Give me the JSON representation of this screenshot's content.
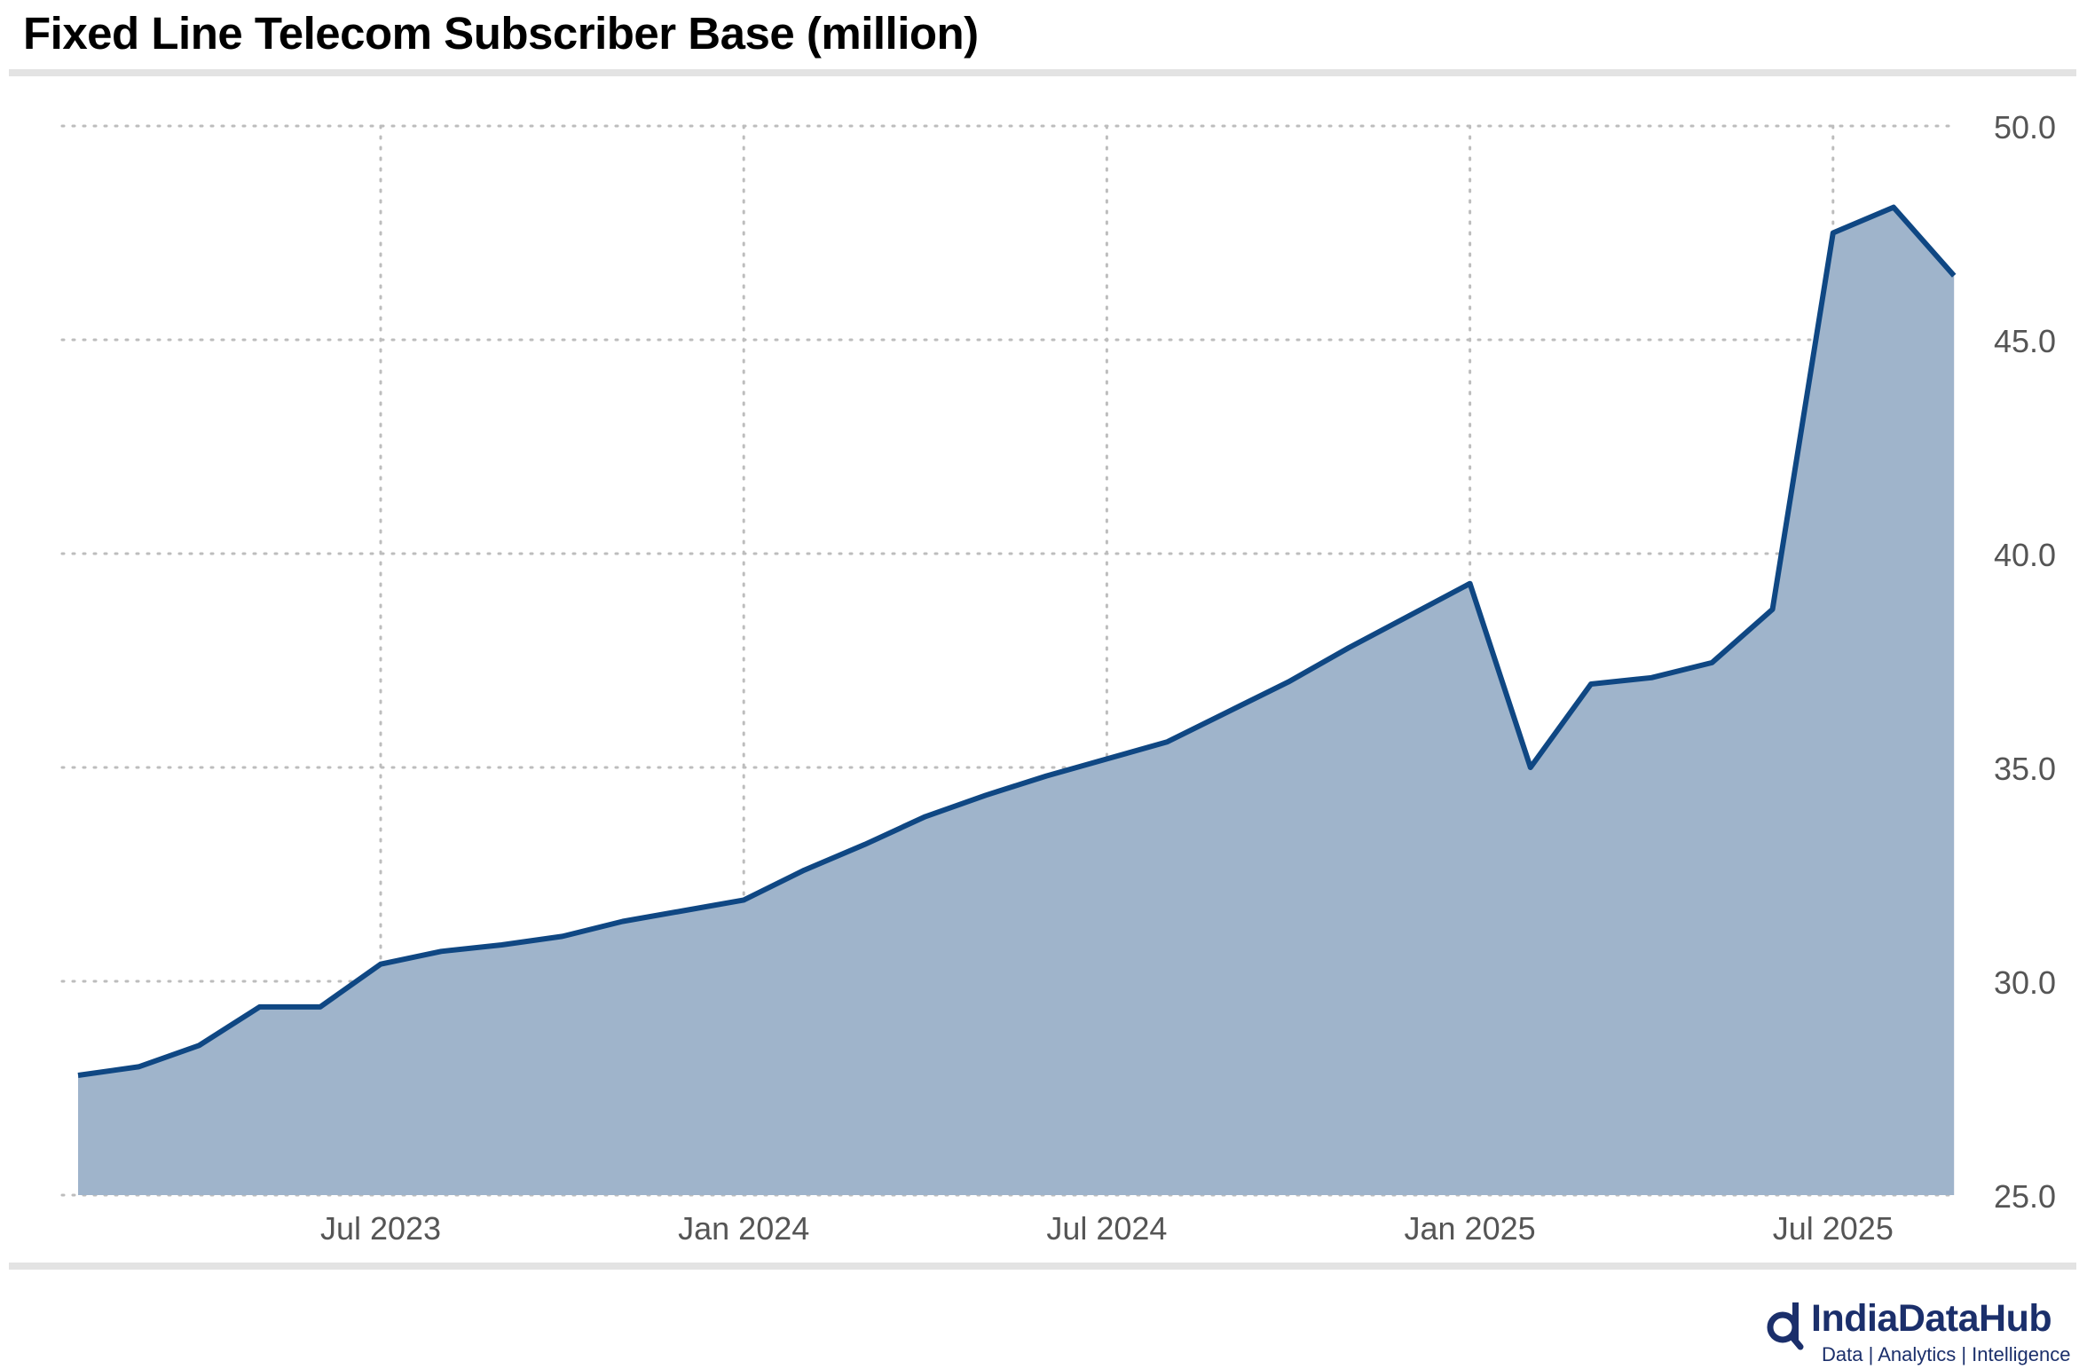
{
  "title": "Fixed Line Telecom Subscriber Base (million)",
  "brand": {
    "name": "IndiaDataHub",
    "tagline": "Data | Analytics | Intelligence",
    "logo_icon": "magnifier-d-logo-icon"
  },
  "colors": {
    "line": "#0f4783",
    "area": "#9fb4cb",
    "grid": "#bdbdbd",
    "axis_text": "#555555",
    "brand": "#1b2f6b"
  },
  "chart_data": {
    "type": "area",
    "title": "Fixed Line Telecom Subscriber Base (million)",
    "xlabel": "",
    "ylabel": "",
    "x_ticks": [
      "Jul 2023",
      "Jan 2024",
      "Jul 2024",
      "Jan 2025",
      "Jul 2025"
    ],
    "x_tick_dates": [
      "2023-07",
      "2024-01",
      "2024-07",
      "2025-01",
      "2025-07"
    ],
    "y_ticks": [
      "25.0",
      "30.0",
      "35.0",
      "40.0",
      "45.0",
      "50.0"
    ],
    "ylim": [
      25,
      50
    ],
    "y_axis_side": "right",
    "grid": "dotted",
    "legend": "none",
    "x": [
      "2023-02",
      "2023-03",
      "2023-04",
      "2023-05",
      "2023-06",
      "2023-07",
      "2023-08",
      "2023-09",
      "2023-10",
      "2023-11",
      "2023-12",
      "2024-01",
      "2024-02",
      "2024-03",
      "2024-04",
      "2024-05",
      "2024-06",
      "2024-07",
      "2024-08",
      "2024-09",
      "2024-10",
      "2024-11",
      "2024-12",
      "2025-01",
      "2025-02",
      "2025-03",
      "2025-04",
      "2025-05",
      "2025-06",
      "2025-07",
      "2025-08",
      "2025-09"
    ],
    "values": [
      27.8,
      28.0,
      28.5,
      29.4,
      29.4,
      30.4,
      30.7,
      30.85,
      31.05,
      31.4,
      31.65,
      31.9,
      32.6,
      33.2,
      33.85,
      34.35,
      34.8,
      35.2,
      35.6,
      36.3,
      37.0,
      37.8,
      38.55,
      39.3,
      35.0,
      36.95,
      37.1,
      37.45,
      38.7,
      47.5,
      48.1,
      46.5
    ]
  }
}
